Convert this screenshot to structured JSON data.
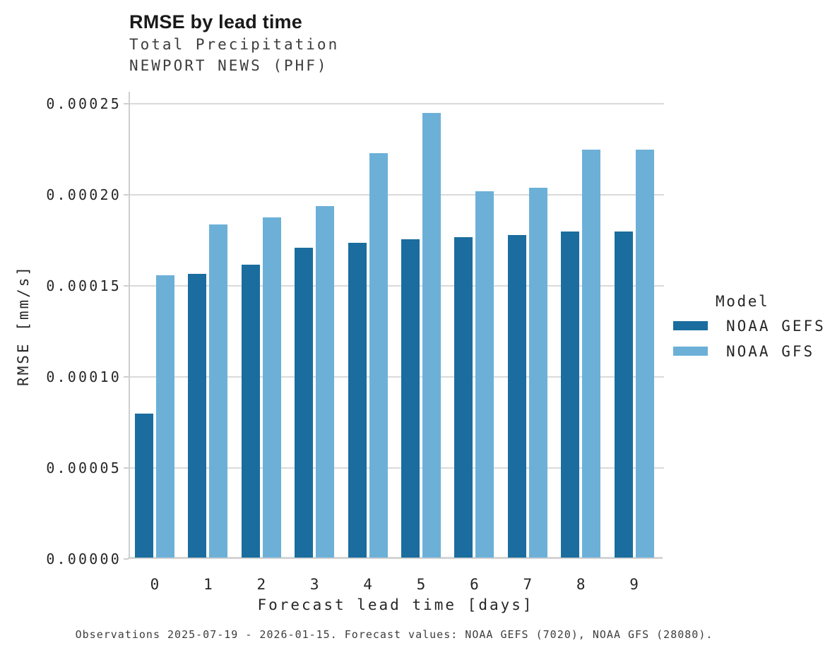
{
  "header": {
    "title": "RMSE by lead time",
    "subtitle_variable": "Total Precipitation",
    "subtitle_station": "NEWPORT NEWS (PHF)"
  },
  "axes": {
    "x_label": "Forecast lead time [days]",
    "y_label": "RMSE [mm/s]",
    "y_tick_labels": [
      "0.00000",
      "0.00005",
      "0.00010",
      "0.00015",
      "0.00020",
      "0.00025"
    ],
    "x_tick_labels": [
      "0",
      "1",
      "2",
      "3",
      "4",
      "5",
      "6",
      "7",
      "8",
      "9"
    ]
  },
  "legend": {
    "title": "Model",
    "entries": [
      {
        "label": "NOAA GEFS",
        "color": "#1a6d9e"
      },
      {
        "label": "NOAA GFS",
        "color": "#6cb0d8"
      }
    ]
  },
  "caption": "Observations 2025-07-19 - 2026-01-15. Forecast values: NOAA GEFS (7020), NOAA GFS (28080).",
  "colors": {
    "gefs_bar": "#1a6d9e",
    "gfs_bar": "#6cb0d8",
    "grid": "#dadada",
    "spine": "#cfcfcf",
    "text": "#262626",
    "muted_text": "#3d3d3d"
  },
  "chart_data": {
    "type": "bar",
    "title": "RMSE by lead time",
    "subtitle": [
      "Total Precipitation",
      "NEWPORT NEWS (PHF)"
    ],
    "xlabel": "Forecast lead time [days]",
    "ylabel": "RMSE [mm/s]",
    "categories": [
      0,
      1,
      2,
      3,
      4,
      5,
      6,
      7,
      8,
      9
    ],
    "series": [
      {
        "name": "NOAA GEFS",
        "color": "#1a6d9e",
        "values": [
          7.9e-05,
          0.000156,
          0.000161,
          0.00017,
          0.000173,
          0.000175,
          0.000176,
          0.000177,
          0.000179,
          0.000179
        ]
      },
      {
        "name": "NOAA GFS",
        "color": "#6cb0d8",
        "values": [
          0.000155,
          0.000183,
          0.000187,
          0.000193,
          0.000222,
          0.000244,
          0.000201,
          0.000203,
          0.000224,
          0.000224
        ]
      }
    ],
    "ylim": [
      0,
      0.00025
    ],
    "ytick_step": 5e-05,
    "grid": "horizontal",
    "legend_title": "Model",
    "legend_position": "right"
  }
}
